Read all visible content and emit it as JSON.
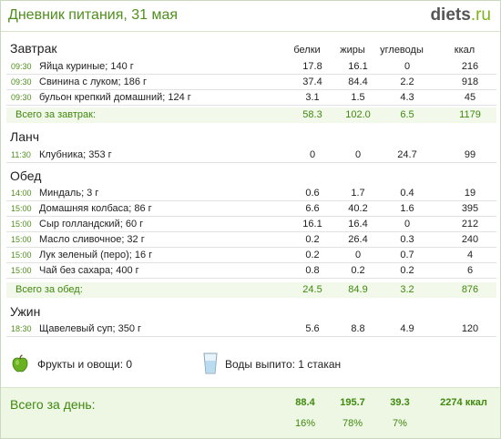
{
  "header": {
    "title": "Дневник питания, 31 мая",
    "logo_main": "diets",
    "logo_tld": ".ru"
  },
  "columns": {
    "protein": "белки",
    "fat": "жиры",
    "carbs": "углеводы",
    "kcal": "ккал"
  },
  "breakfast": {
    "title": "Завтрак",
    "items": [
      {
        "time": "09:30",
        "food": "Яйца куриные; 140 г",
        "protein": "17.8",
        "fat": "16.1",
        "carbs": "0",
        "kcal": "216"
      },
      {
        "time": "09:30",
        "food": "Свинина с луком; 186 г",
        "protein": "37.4",
        "fat": "84.4",
        "carbs": "2.2",
        "kcal": "918"
      },
      {
        "time": "09:30",
        "food": "бульон крепкий домашний; 124 г",
        "protein": "3.1",
        "fat": "1.5",
        "carbs": "4.3",
        "kcal": "45"
      }
    ],
    "total": {
      "label": "Всего за завтрак:",
      "protein": "58.3",
      "fat": "102.0",
      "carbs": "6.5",
      "kcal": "1179"
    }
  },
  "lunch": {
    "title": "Ланч",
    "items": [
      {
        "time": "11:30",
        "food": "Клубника; 353 г",
        "protein": "0",
        "fat": "0",
        "carbs": "24.7",
        "kcal": "99"
      }
    ]
  },
  "dinner": {
    "title": "Обед",
    "items": [
      {
        "time": "14:00",
        "food": "Миндаль; 3 г",
        "protein": "0.6",
        "fat": "1.7",
        "carbs": "0.4",
        "kcal": "19"
      },
      {
        "time": "15:00",
        "food": "Домашняя колбаса; 86 г",
        "protein": "6.6",
        "fat": "40.2",
        "carbs": "1.6",
        "kcal": "395"
      },
      {
        "time": "15:00",
        "food": "Сыр голландский; 60 г",
        "protein": "16.1",
        "fat": "16.4",
        "carbs": "0",
        "kcal": "212"
      },
      {
        "time": "15:00",
        "food": "Масло сливочное; 32 г",
        "protein": "0.2",
        "fat": "26.4",
        "carbs": "0.3",
        "kcal": "240"
      },
      {
        "time": "15:00",
        "food": "Лук зеленый (перо); 16 г",
        "protein": "0.2",
        "fat": "0",
        "carbs": "0.7",
        "kcal": "4"
      },
      {
        "time": "15:00",
        "food": "Чай без сахара; 400 г",
        "protein": "0.8",
        "fat": "0.2",
        "carbs": "0.2",
        "kcal": "6"
      }
    ],
    "total": {
      "label": "Всего за обед:",
      "protein": "24.5",
      "fat": "84.9",
      "carbs": "3.2",
      "kcal": "876"
    }
  },
  "supper": {
    "title": "Ужин",
    "items": [
      {
        "time": "18:30",
        "food": "Щавелевый суп; 350 г",
        "protein": "5.6",
        "fat": "8.8",
        "carbs": "4.9",
        "kcal": "120"
      }
    ]
  },
  "extras": {
    "fruits": "Фрукты и овощи: 0",
    "water": "Воды выпито: 1 стакан",
    "fruits_icon": "apple-icon",
    "water_icon": "glass-icon"
  },
  "day_total": {
    "label": "Всего за день:",
    "protein": "88.4",
    "fat": "195.7",
    "carbs": "39.3",
    "kcal": "2274 ккал",
    "protein_pct": "16%",
    "fat_pct": "78%",
    "carbs_pct": "7%"
  },
  "colors": {
    "accent": "#4f8f1c",
    "total_bg": "#f2f8ea",
    "day_bg": "#eef6e4"
  }
}
